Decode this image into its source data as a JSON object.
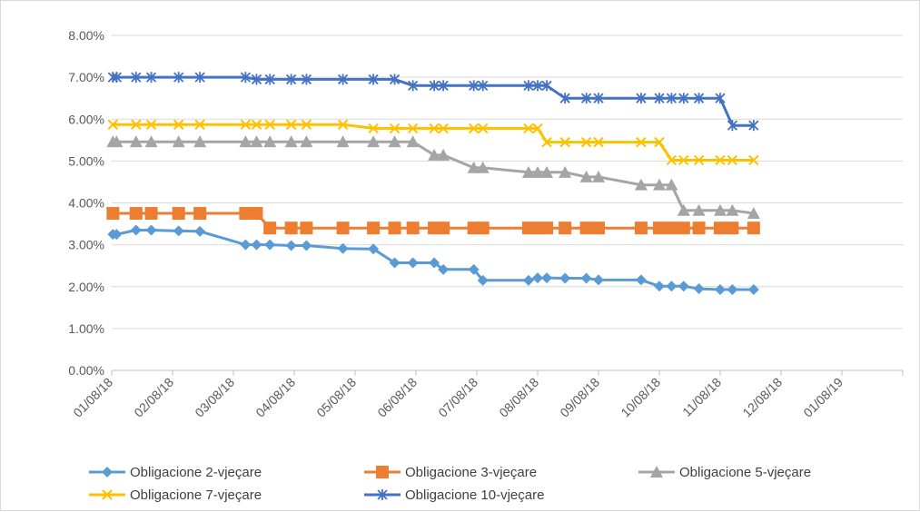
{
  "chart_data": {
    "type": "line",
    "title": "",
    "xlabel": "",
    "ylabel": "",
    "ylim": [
      0,
      0.08
    ],
    "y_ticks": [
      0,
      0.01,
      0.02,
      0.03,
      0.04,
      0.05,
      0.06,
      0.07,
      0.08
    ],
    "y_tick_labels": [
      "0.00%",
      "1.00%",
      "2.00%",
      "3.00%",
      "4.00%",
      "5.00%",
      "6.00%",
      "7.00%",
      "8.00%"
    ],
    "x_tick_labels": [
      "01/08/18",
      "02/08/18",
      "03/08/18",
      "04/08/18",
      "05/08/18",
      "06/08/18",
      "07/08/18",
      "08/08/18",
      "09/08/18",
      "10/08/18",
      "11/08/18",
      "12/08/18",
      "01/08/19"
    ],
    "x_domain": [
      0,
      13
    ],
    "gridlines": true,
    "legend_position": "bottom",
    "series": [
      {
        "name": "Obligacione 2-vjeçare",
        "color": "#5b9bd5",
        "marker": "diamond",
        "points": [
          [
            0.02,
            0.0325
          ],
          [
            0.08,
            0.0325
          ],
          [
            0.4,
            0.0335
          ],
          [
            0.65,
            0.0335
          ],
          [
            1.1,
            0.0333
          ],
          [
            1.45,
            0.0332
          ],
          [
            2.2,
            0.03
          ],
          [
            2.38,
            0.03
          ],
          [
            2.6,
            0.03
          ],
          [
            2.95,
            0.0298
          ],
          [
            3.2,
            0.0298
          ],
          [
            3.8,
            0.0291
          ],
          [
            4.3,
            0.029
          ],
          [
            4.65,
            0.0257
          ],
          [
            4.95,
            0.0257
          ],
          [
            5.3,
            0.0257
          ],
          [
            5.45,
            0.0241
          ],
          [
            5.95,
            0.0241
          ],
          [
            6.1,
            0.0215
          ],
          [
            6.85,
            0.0215
          ],
          [
            7.0,
            0.0221
          ],
          [
            7.15,
            0.0221
          ],
          [
            7.45,
            0.022
          ],
          [
            7.8,
            0.022
          ],
          [
            8.0,
            0.0216
          ],
          [
            8.7,
            0.0216
          ],
          [
            9.0,
            0.0201
          ],
          [
            9.2,
            0.0201
          ],
          [
            9.4,
            0.0201
          ],
          [
            9.65,
            0.0195
          ],
          [
            10.0,
            0.0193
          ],
          [
            10.2,
            0.0193
          ],
          [
            10.55,
            0.0193
          ]
        ]
      },
      {
        "name": "Obligacione 3-vjeçare",
        "color": "#ed7d31",
        "marker": "square",
        "points": [
          [
            0.02,
            0.0375
          ],
          [
            0.4,
            0.0375
          ],
          [
            0.65,
            0.0375
          ],
          [
            1.1,
            0.0375
          ],
          [
            1.45,
            0.0375
          ],
          [
            2.2,
            0.0375
          ],
          [
            2.38,
            0.0375
          ],
          [
            2.6,
            0.034
          ],
          [
            2.95,
            0.034
          ],
          [
            3.2,
            0.034
          ],
          [
            3.8,
            0.034
          ],
          [
            4.3,
            0.034
          ],
          [
            4.65,
            0.034
          ],
          [
            4.95,
            0.034
          ],
          [
            5.3,
            0.034
          ],
          [
            5.45,
            0.034
          ],
          [
            5.95,
            0.034
          ],
          [
            6.1,
            0.034
          ],
          [
            6.85,
            0.034
          ],
          [
            7.0,
            0.034
          ],
          [
            7.15,
            0.034
          ],
          [
            7.45,
            0.034
          ],
          [
            7.8,
            0.034
          ],
          [
            8.0,
            0.034
          ],
          [
            8.7,
            0.034
          ],
          [
            9.0,
            0.034
          ],
          [
            9.2,
            0.034
          ],
          [
            9.4,
            0.034
          ],
          [
            9.65,
            0.034
          ],
          [
            10.0,
            0.034
          ],
          [
            10.2,
            0.034
          ],
          [
            10.55,
            0.034
          ]
        ]
      },
      {
        "name": "Obligacione 5-vjeçare",
        "color": "#a5a5a5",
        "marker": "triangle",
        "points": [
          [
            0.02,
            0.0546
          ],
          [
            0.08,
            0.0546
          ],
          [
            0.4,
            0.0546
          ],
          [
            0.65,
            0.0546
          ],
          [
            1.1,
            0.0546
          ],
          [
            1.45,
            0.0546
          ],
          [
            2.2,
            0.0546
          ],
          [
            2.38,
            0.0546
          ],
          [
            2.6,
            0.0546
          ],
          [
            2.95,
            0.0546
          ],
          [
            3.2,
            0.0546
          ],
          [
            3.8,
            0.0546
          ],
          [
            4.3,
            0.0546
          ],
          [
            4.65,
            0.0546
          ],
          [
            4.95,
            0.0546
          ],
          [
            5.3,
            0.0514
          ],
          [
            5.45,
            0.0514
          ],
          [
            5.95,
            0.0484
          ],
          [
            6.1,
            0.0484
          ],
          [
            6.85,
            0.0473
          ],
          [
            7.0,
            0.0473
          ],
          [
            7.15,
            0.0473
          ],
          [
            7.45,
            0.0473
          ],
          [
            7.8,
            0.0462
          ],
          [
            8.0,
            0.0462
          ],
          [
            8.7,
            0.0443
          ],
          [
            9.0,
            0.0443
          ],
          [
            9.2,
            0.0443
          ],
          [
            9.4,
            0.0382
          ],
          [
            9.65,
            0.0382
          ],
          [
            10.0,
            0.0382
          ],
          [
            10.2,
            0.0382
          ],
          [
            10.55,
            0.0375
          ]
        ]
      },
      {
        "name": "Obligacione 7-vjeçare",
        "color": "#ffc000",
        "marker": "x",
        "points": [
          [
            0.02,
            0.0587
          ],
          [
            0.4,
            0.0587
          ],
          [
            0.65,
            0.0587
          ],
          [
            1.1,
            0.0587
          ],
          [
            1.45,
            0.0587
          ],
          [
            2.2,
            0.0587
          ],
          [
            2.38,
            0.0587
          ],
          [
            2.6,
            0.0587
          ],
          [
            2.95,
            0.0587
          ],
          [
            3.2,
            0.0587
          ],
          [
            3.8,
            0.0587
          ],
          [
            4.3,
            0.0578
          ],
          [
            4.65,
            0.0578
          ],
          [
            4.95,
            0.0578
          ],
          [
            5.3,
            0.0578
          ],
          [
            5.45,
            0.0578
          ],
          [
            5.95,
            0.0578
          ],
          [
            6.1,
            0.0578
          ],
          [
            6.85,
            0.0578
          ],
          [
            7.0,
            0.0578
          ],
          [
            7.15,
            0.0545
          ],
          [
            7.45,
            0.0545
          ],
          [
            7.8,
            0.0545
          ],
          [
            8.0,
            0.0545
          ],
          [
            8.7,
            0.0545
          ],
          [
            9.0,
            0.0545
          ],
          [
            9.2,
            0.0502
          ],
          [
            9.4,
            0.0502
          ],
          [
            9.65,
            0.0502
          ],
          [
            10.0,
            0.0502
          ],
          [
            10.2,
            0.0502
          ],
          [
            10.55,
            0.0502
          ]
        ]
      },
      {
        "name": "Obligacione 10-vjeçare",
        "color": "#4472c4",
        "marker": "star",
        "points": [
          [
            0.02,
            0.07
          ],
          [
            0.08,
            0.07
          ],
          [
            0.4,
            0.07
          ],
          [
            0.65,
            0.07
          ],
          [
            1.1,
            0.07
          ],
          [
            1.45,
            0.07
          ],
          [
            2.2,
            0.07
          ],
          [
            2.38,
            0.0695
          ],
          [
            2.6,
            0.0695
          ],
          [
            2.95,
            0.0695
          ],
          [
            3.2,
            0.0695
          ],
          [
            3.8,
            0.0695
          ],
          [
            4.3,
            0.0695
          ],
          [
            4.65,
            0.0695
          ],
          [
            4.95,
            0.068
          ],
          [
            5.3,
            0.068
          ],
          [
            5.45,
            0.068
          ],
          [
            5.95,
            0.068
          ],
          [
            6.1,
            0.068
          ],
          [
            6.85,
            0.068
          ],
          [
            7.0,
            0.068
          ],
          [
            7.15,
            0.068
          ],
          [
            7.45,
            0.065
          ],
          [
            7.8,
            0.065
          ],
          [
            8.0,
            0.065
          ],
          [
            8.7,
            0.065
          ],
          [
            9.0,
            0.065
          ],
          [
            9.2,
            0.065
          ],
          [
            9.4,
            0.065
          ],
          [
            9.65,
            0.065
          ],
          [
            10.0,
            0.065
          ],
          [
            10.2,
            0.0585
          ],
          [
            10.55,
            0.0585
          ]
        ]
      }
    ]
  }
}
